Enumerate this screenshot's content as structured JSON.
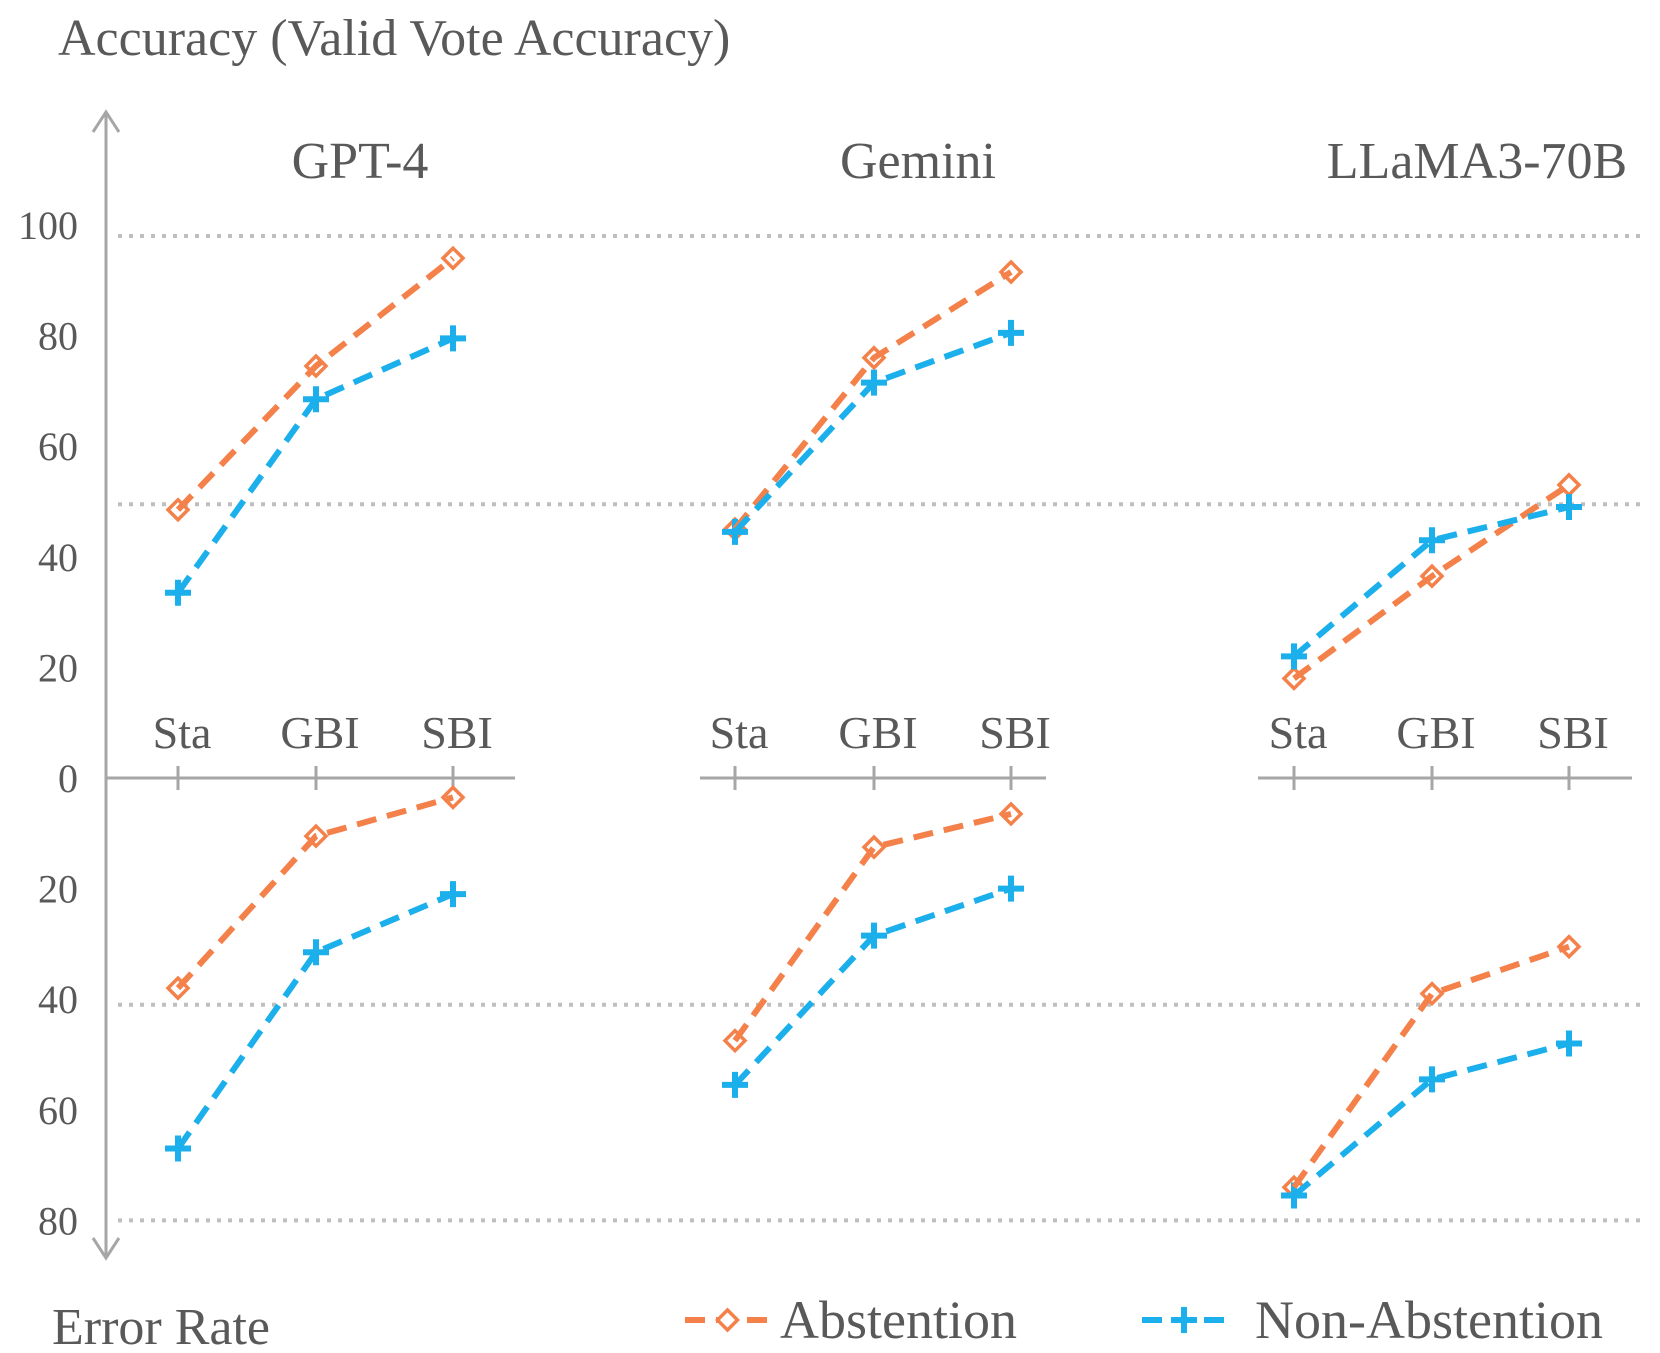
{
  "chart_data": {
    "type": "line",
    "ylabel_top": "Accuracy (Valid Vote Accuracy)",
    "ylabel_bottom": "Error Rate",
    "yticks_top": [
      "100",
      "80",
      "60",
      "40",
      "20",
      "0"
    ],
    "yticks_bottom": [
      "20",
      "40",
      "60",
      "80"
    ],
    "ylim": [
      -80,
      100
    ],
    "dotted_gridlines": [
      98,
      49.5,
      -41,
      -80
    ],
    "categories": [
      "Sta",
      "GBI",
      "SBI"
    ],
    "legend": {
      "placement": "bottom-right"
    },
    "colors": {
      "Abstention": "#F4804A",
      "Non-Abstention": "#1BAFEC",
      "axis": "#A6A6A6",
      "text": "#595959",
      "grid": "#BFBFBF"
    },
    "panels": [
      {
        "title": "GPT-4",
        "accuracy": {
          "Abstention": [
            48.5,
            74.5,
            94
          ],
          "Non-Abstention": [
            33.5,
            68.5,
            79.5
          ]
        },
        "error_rate": {
          "Abstention": [
            38,
            10.5,
            3.5
          ],
          "Non-Abstention": [
            67,
            31.5,
            21
          ]
        }
      },
      {
        "title": "Gemini",
        "accuracy": {
          "Abstention": [
            45,
            76,
            91.5
          ],
          "Non-Abstention": [
            44.5,
            71.5,
            80.5
          ]
        },
        "error_rate": {
          "Abstention": [
            47.5,
            12.5,
            6.5
          ],
          "Non-Abstention": [
            55.5,
            28.5,
            20
          ]
        }
      },
      {
        "title": "LLaMA3-70B",
        "accuracy": {
          "Abstention": [
            18,
            36.5,
            53
          ],
          "Non-Abstention": [
            22,
            43,
            49
          ]
        },
        "error_rate": {
          "Abstention": [
            74,
            39,
            30.5
          ],
          "Non-Abstention": [
            75.5,
            54.5,
            48
          ]
        }
      }
    ],
    "series": [
      {
        "name": "Abstention",
        "marker": "diamond"
      },
      {
        "name": "Non-Abstention",
        "marker": "plus"
      }
    ]
  }
}
